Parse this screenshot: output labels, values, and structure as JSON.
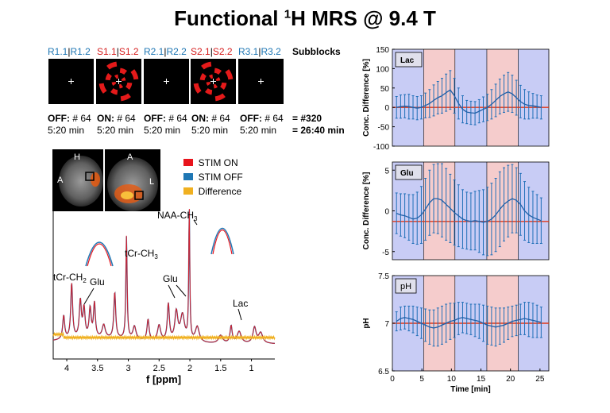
{
  "title": {
    "prefix": "Functional ",
    "sup": "1",
    "suffix": "H MRS @ 9.4 T"
  },
  "subblocks": {
    "label": "Subblocks",
    "blocks": [
      {
        "a": "R1.1",
        "b": "R1.2",
        "type": "rest"
      },
      {
        "a": "S1.1",
        "b": "S1.2",
        "type": "stim"
      },
      {
        "a": "R2.1",
        "b": "R2.2",
        "type": "rest"
      },
      {
        "a": "S2.1",
        "b": "S2.2",
        "type": "stim"
      },
      {
        "a": "R3.1",
        "b": "R3.2",
        "type": "rest"
      }
    ],
    "info": [
      {
        "state": "OFF:",
        "count": "# 64",
        "dur": "5:20 min"
      },
      {
        "state": "ON:",
        "count": "# 64",
        "dur": "5:20 min"
      },
      {
        "state": "OFF:",
        "count": "# 64",
        "dur": "5:20 min"
      },
      {
        "state": "ON:",
        "count": "# 64",
        "dur": "5:20 min"
      },
      {
        "state": "OFF:",
        "count": "# 64",
        "dur": "5:20 min"
      }
    ],
    "total_count": "= #320",
    "total_time": "= 26:40 min"
  },
  "mri": {
    "labels": [
      "H",
      "A",
      "A",
      "L"
    ]
  },
  "spectrum": {
    "legend": [
      {
        "label": "STIM ON",
        "color": "#e8141c"
      },
      {
        "label": "STIM OFF",
        "color": "#1f77b4"
      },
      {
        "label": "Difference",
        "color": "#f0b020"
      }
    ],
    "xlabel": "f [ppm]",
    "xticks": [
      "4",
      "3.5",
      "3",
      "2.5",
      "2",
      "1.5",
      "1"
    ],
    "peaks": {
      "naa": "NAA-CH",
      "naa_sub": "3",
      "tcr3": "tCr-CH",
      "tcr3_sub": "3",
      "tcr2": "tCr-CH",
      "tcr2_sub": "2",
      "glu1": "Glu",
      "glu2": "Glu",
      "lac": "Lac"
    }
  },
  "chart_data": [
    {
      "type": "line",
      "title": "Lac",
      "ylabel": "Conc. Difference [%]",
      "xlabel": "",
      "xlim": [
        0,
        26.5
      ],
      "ylim": [
        -100,
        150
      ],
      "yticks": [
        -100,
        -50,
        0,
        50,
        100,
        150
      ],
      "x": [
        0.7,
        1.4,
        2.1,
        2.8,
        3.5,
        4.2,
        4.9,
        5.6,
        6.3,
        7.0,
        7.7,
        8.4,
        9.1,
        9.8,
        10.5,
        11.2,
        11.9,
        12.6,
        13.3,
        14.0,
        14.7,
        15.4,
        16.1,
        16.8,
        17.5,
        18.2,
        18.9,
        19.6,
        20.3,
        21.0,
        21.7,
        22.4,
        23.1,
        23.8,
        24.5,
        25.2
      ],
      "y": [
        0,
        2,
        3,
        2,
        0,
        -2,
        0,
        5,
        10,
        18,
        25,
        30,
        38,
        45,
        30,
        10,
        -5,
        -12,
        -14,
        -15,
        -10,
        -5,
        0,
        8,
        18,
        28,
        35,
        40,
        35,
        25,
        15,
        8,
        5,
        4,
        2,
        0
      ],
      "err": [
        28,
        30,
        30,
        32,
        30,
        30,
        30,
        32,
        36,
        40,
        42,
        45,
        48,
        50,
        45,
        40,
        35,
        30,
        30,
        30,
        30,
        32,
        34,
        38,
        42,
        45,
        48,
        50,
        48,
        45,
        42,
        38,
        35,
        32,
        30,
        30
      ],
      "baseline": 0
    },
    {
      "type": "line",
      "title": "Glu",
      "ylabel": "Conc. Difference [%]",
      "xlabel": "",
      "xlim": [
        0,
        26.5
      ],
      "ylim": [
        -6,
        6
      ],
      "yticks": [
        -5,
        0,
        5
      ],
      "x": [
        0.7,
        1.4,
        2.1,
        2.8,
        3.5,
        4.2,
        4.9,
        5.6,
        6.3,
        7.0,
        7.7,
        8.4,
        9.1,
        9.8,
        10.5,
        11.2,
        11.9,
        12.6,
        13.3,
        14.0,
        14.7,
        15.4,
        16.1,
        16.8,
        17.5,
        18.2,
        18.9,
        19.6,
        20.3,
        21.0,
        21.7,
        22.4,
        23.1,
        23.8,
        24.5,
        25.2
      ],
      "y": [
        -0.3,
        -0.5,
        -0.6,
        -0.8,
        -1.0,
        -0.9,
        -0.5,
        0.2,
        1.0,
        1.5,
        1.5,
        1.3,
        0.8,
        0.3,
        -0.2,
        -0.6,
        -1.0,
        -1.2,
        -1.3,
        -1.2,
        -1.3,
        -1.4,
        -1.3,
        -1.0,
        -0.5,
        0.2,
        0.8,
        1.2,
        1.5,
        1.3,
        0.8,
        0.0,
        -0.5,
        -0.8,
        -1.0,
        -1.2
      ],
      "err": [
        2.5,
        2.6,
        2.7,
        2.8,
        3.0,
        3.2,
        3.5,
        3.8,
        4.0,
        4.2,
        4.3,
        4.5,
        4.4,
        4.2,
        4.0,
        3.8,
        3.6,
        3.5,
        3.5,
        3.6,
        3.8,
        4.0,
        4.2,
        4.4,
        4.5,
        4.6,
        4.5,
        4.4,
        4.2,
        4.0,
        3.8,
        3.6,
        3.4,
        3.2,
        3.0,
        2.8
      ],
      "baseline": -1.3
    },
    {
      "type": "line",
      "title": "pH",
      "ylabel": "pH",
      "xlabel": "Time [min]",
      "xlim": [
        0,
        26.5
      ],
      "ylim": [
        6.5,
        7.5
      ],
      "yticks": [
        6.5,
        7,
        7.5
      ],
      "xticks": [
        0,
        5,
        10,
        15,
        20,
        25
      ],
      "x": [
        0.7,
        1.4,
        2.1,
        2.8,
        3.5,
        4.2,
        4.9,
        5.6,
        6.3,
        7.0,
        7.7,
        8.4,
        9.1,
        9.8,
        10.5,
        11.2,
        11.9,
        12.6,
        13.3,
        14.0,
        14.7,
        15.4,
        16.1,
        16.8,
        17.5,
        18.2,
        18.9,
        19.6,
        20.3,
        21.0,
        21.7,
        22.4,
        23.1,
        23.8,
        24.5,
        25.2
      ],
      "y": [
        7.02,
        7.05,
        7.06,
        7.05,
        7.04,
        7.02,
        7.0,
        6.98,
        6.96,
        6.95,
        6.96,
        6.98,
        7.0,
        7.02,
        7.03,
        7.05,
        7.06,
        7.05,
        7.04,
        7.03,
        7.02,
        7.0,
        6.98,
        6.97,
        6.96,
        6.97,
        6.98,
        7.0,
        7.02,
        7.03,
        7.04,
        7.05,
        7.04,
        7.03,
        7.02,
        7.01
      ],
      "err": [
        0.1,
        0.12,
        0.12,
        0.13,
        0.14,
        0.15,
        0.16,
        0.17,
        0.18,
        0.19,
        0.2,
        0.2,
        0.2,
        0.19,
        0.18,
        0.17,
        0.16,
        0.16,
        0.16,
        0.17,
        0.18,
        0.19,
        0.2,
        0.2,
        0.2,
        0.19,
        0.18,
        0.17,
        0.16,
        0.16,
        0.16,
        0.17,
        0.18,
        0.18,
        0.17,
        0.16
      ],
      "baseline": 7.0
    }
  ]
}
